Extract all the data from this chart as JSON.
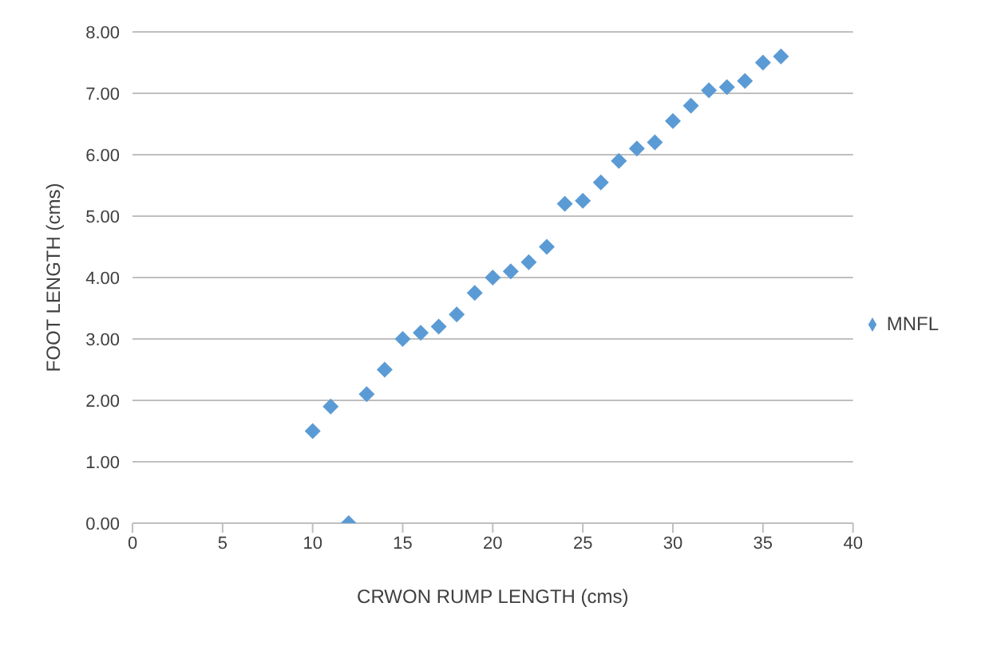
{
  "chart_data": {
    "type": "scatter",
    "xlabel": "CRWON RUMP LENGTH (cms)",
    "ylabel": "FOOT  LENGTH (cms)",
    "x": [
      10,
      11,
      12,
      13,
      14,
      15,
      16,
      17,
      18,
      19,
      20,
      21,
      22,
      23,
      24,
      25,
      26,
      27,
      28,
      29,
      30,
      31,
      32,
      33,
      34,
      35,
      36
    ],
    "series": [
      {
        "name": "MNFL",
        "color": "#5b9bd5",
        "values": [
          1.5,
          1.9,
          0,
          2.1,
          2.5,
          3.0,
          3.1,
          3.2,
          3.4,
          3.75,
          4.0,
          4.1,
          4.25,
          4.5,
          5.2,
          5.25,
          5.55,
          5.9,
          6.1,
          6.2,
          6.55,
          6.8,
          7.05,
          7.1,
          7.2,
          7.5,
          7.6
        ]
      }
    ],
    "xlim": [
      0,
      40
    ],
    "xticks": [
      0,
      5,
      10,
      15,
      20,
      25,
      30,
      35,
      40
    ],
    "ylim": [
      0,
      8
    ],
    "yticks": [
      {
        "value": 0,
        "label": "0.00"
      },
      {
        "value": 1,
        "label": "1.00"
      },
      {
        "value": 2,
        "label": "2.00"
      },
      {
        "value": 3,
        "label": "3.00"
      },
      {
        "value": 4,
        "label": "4.00"
      },
      {
        "value": 5,
        "label": "5.00"
      },
      {
        "value": 6,
        "label": "6.00"
      },
      {
        "value": 7,
        "label": "7.00"
      },
      {
        "value": 8,
        "label": "8.00"
      }
    ],
    "grid": "y",
    "legend": "right",
    "marker": "diamond"
  }
}
